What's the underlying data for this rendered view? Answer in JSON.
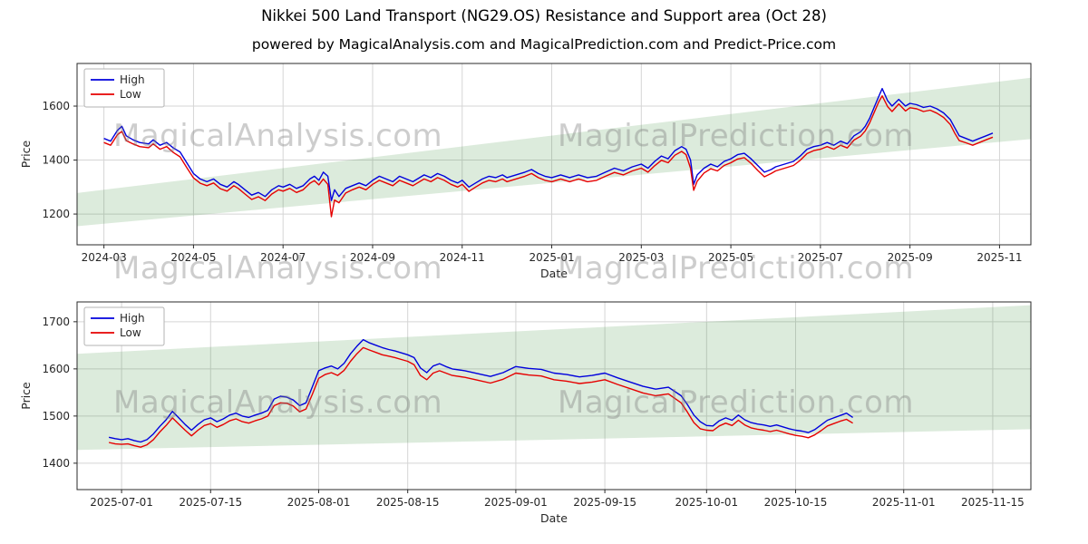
{
  "title": "Nikkei 500 Land Transport (NG29.OS) Resistance and Support area (Oct 28)",
  "subtitle": "powered by MagicalAnalysis.com and MagicalPrediction.com and Predict-Price.com",
  "watermarks": {
    "analysis": "MagicalAnalysis.com",
    "prediction": "MagicalPrediction.com"
  },
  "colors": {
    "grid": "#d5d5d5",
    "spine": "#2a2a2a",
    "text": "#262626",
    "band": "#2e8b2e",
    "legend_border": "#b3b3b3"
  },
  "chart_data": [
    {
      "type": "line",
      "title": "",
      "xlabel": "Date",
      "ylabel": "Price",
      "xlim": [
        -0.6,
        20.7
      ],
      "ylim": [
        1086,
        1758
      ],
      "grid": true,
      "legend_position": "upper left",
      "x_ticks": [
        {
          "v": 0,
          "label": "2024-03"
        },
        {
          "v": 2,
          "label": "2024-05"
        },
        {
          "v": 4,
          "label": "2024-07"
        },
        {
          "v": 6,
          "label": "2024-09"
        },
        {
          "v": 8,
          "label": "2024-11"
        },
        {
          "v": 10,
          "label": "2025-01"
        },
        {
          "v": 12,
          "label": "2025-03"
        },
        {
          "v": 14,
          "label": "2025-05"
        },
        {
          "v": 16,
          "label": "2025-07"
        },
        {
          "v": 18,
          "label": "2025-09"
        },
        {
          "v": 20,
          "label": "2025-11"
        }
      ],
      "y_ticks": [
        1200,
        1400,
        1600
      ],
      "band": {
        "upper": [
          [
            -0.6,
            1278
          ],
          [
            20.7,
            1705
          ]
        ],
        "lower": [
          [
            -0.6,
            1155
          ],
          [
            20.7,
            1478
          ]
        ]
      },
      "series": [
        {
          "name": "High",
          "color": "#0000dd"
        },
        {
          "name": "Low",
          "color": "#e60000"
        }
      ],
      "points": [
        [
          0,
          1480,
          1465
        ],
        [
          0.15,
          1470,
          1455
        ],
        [
          0.3,
          1510,
          1494
        ],
        [
          0.4,
          1525,
          1506
        ],
        [
          0.5,
          1490,
          1472
        ],
        [
          0.65,
          1475,
          1460
        ],
        [
          0.8,
          1465,
          1450
        ],
        [
          1.0,
          1460,
          1446
        ],
        [
          1.1,
          1475,
          1460
        ],
        [
          1.25,
          1455,
          1440
        ],
        [
          1.4,
          1465,
          1450
        ],
        [
          1.55,
          1445,
          1428
        ],
        [
          1.7,
          1430,
          1412
        ],
        [
          1.85,
          1390,
          1372
        ],
        [
          2.0,
          1350,
          1334
        ],
        [
          2.15,
          1330,
          1314
        ],
        [
          2.3,
          1320,
          1305
        ],
        [
          2.45,
          1330,
          1315
        ],
        [
          2.6,
          1310,
          1294
        ],
        [
          2.75,
          1300,
          1285
        ],
        [
          2.9,
          1320,
          1305
        ],
        [
          3.0,
          1310,
          1295
        ],
        [
          3.15,
          1290,
          1274
        ],
        [
          3.3,
          1270,
          1254
        ],
        [
          3.45,
          1280,
          1264
        ],
        [
          3.6,
          1265,
          1250
        ],
        [
          3.75,
          1290,
          1274
        ],
        [
          3.9,
          1305,
          1290
        ],
        [
          4.0,
          1300,
          1285
        ],
        [
          4.15,
          1310,
          1295
        ],
        [
          4.3,
          1295,
          1280
        ],
        [
          4.45,
          1305,
          1290
        ],
        [
          4.6,
          1330,
          1314
        ],
        [
          4.7,
          1340,
          1324
        ],
        [
          4.8,
          1325,
          1308
        ],
        [
          4.9,
          1355,
          1330
        ],
        [
          5.0,
          1340,
          1310
        ],
        [
          5.08,
          1250,
          1190
        ],
        [
          5.15,
          1290,
          1252
        ],
        [
          5.25,
          1265,
          1242
        ],
        [
          5.4,
          1295,
          1278
        ],
        [
          5.55,
          1305,
          1290
        ],
        [
          5.7,
          1315,
          1300
        ],
        [
          5.85,
          1305,
          1290
        ],
        [
          6.0,
          1325,
          1310
        ],
        [
          6.15,
          1340,
          1325
        ],
        [
          6.3,
          1330,
          1315
        ],
        [
          6.45,
          1320,
          1305
        ],
        [
          6.6,
          1340,
          1325
        ],
        [
          6.75,
          1330,
          1315
        ],
        [
          6.9,
          1320,
          1305
        ],
        [
          7.0,
          1330,
          1315
        ],
        [
          7.15,
          1345,
          1330
        ],
        [
          7.3,
          1335,
          1320
        ],
        [
          7.45,
          1350,
          1335
        ],
        [
          7.6,
          1340,
          1325
        ],
        [
          7.75,
          1325,
          1310
        ],
        [
          7.9,
          1315,
          1300
        ],
        [
          8.0,
          1325,
          1310
        ],
        [
          8.15,
          1300,
          1284
        ],
        [
          8.3,
          1315,
          1300
        ],
        [
          8.45,
          1330,
          1315
        ],
        [
          8.6,
          1340,
          1325
        ],
        [
          8.75,
          1335,
          1320
        ],
        [
          8.9,
          1345,
          1330
        ],
        [
          9.0,
          1335,
          1320
        ],
        [
          9.2,
          1345,
          1330
        ],
        [
          9.4,
          1355,
          1340
        ],
        [
          9.55,
          1365,
          1350
        ],
        [
          9.7,
          1350,
          1335
        ],
        [
          9.85,
          1340,
          1325
        ],
        [
          10.0,
          1335,
          1320
        ],
        [
          10.2,
          1345,
          1330
        ],
        [
          10.4,
          1335,
          1320
        ],
        [
          10.6,
          1345,
          1330
        ],
        [
          10.8,
          1335,
          1320
        ],
        [
          11.0,
          1340,
          1325
        ],
        [
          11.2,
          1355,
          1340
        ],
        [
          11.4,
          1370,
          1354
        ],
        [
          11.6,
          1360,
          1345
        ],
        [
          11.8,
          1375,
          1360
        ],
        [
          12.0,
          1385,
          1370
        ],
        [
          12.15,
          1370,
          1355
        ],
        [
          12.3,
          1395,
          1379
        ],
        [
          12.45,
          1415,
          1399
        ],
        [
          12.6,
          1405,
          1390
        ],
        [
          12.75,
          1435,
          1418
        ],
        [
          12.9,
          1450,
          1432
        ],
        [
          13.0,
          1440,
          1420
        ],
        [
          13.1,
          1400,
          1370
        ],
        [
          13.17,
          1310,
          1288
        ],
        [
          13.25,
          1345,
          1322
        ],
        [
          13.4,
          1370,
          1352
        ],
        [
          13.55,
          1385,
          1368
        ],
        [
          13.7,
          1375,
          1360
        ],
        [
          13.85,
          1395,
          1380
        ],
        [
          14.0,
          1405,
          1390
        ],
        [
          14.15,
          1420,
          1404
        ],
        [
          14.3,
          1425,
          1409
        ],
        [
          14.45,
          1405,
          1388
        ],
        [
          14.6,
          1380,
          1362
        ],
        [
          14.75,
          1355,
          1338
        ],
        [
          14.9,
          1365,
          1350
        ],
        [
          15.0,
          1375,
          1360
        ],
        [
          15.2,
          1385,
          1370
        ],
        [
          15.4,
          1395,
          1380
        ],
        [
          15.55,
          1415,
          1399
        ],
        [
          15.7,
          1440,
          1424
        ],
        [
          15.85,
          1450,
          1435
        ],
        [
          16.0,
          1455,
          1440
        ],
        [
          16.15,
          1465,
          1450
        ],
        [
          16.3,
          1455,
          1440
        ],
        [
          16.45,
          1470,
          1455
        ],
        [
          16.6,
          1460,
          1445
        ],
        [
          16.75,
          1490,
          1474
        ],
        [
          16.9,
          1505,
          1489
        ],
        [
          17.0,
          1525,
          1508
        ],
        [
          17.1,
          1555,
          1538
        ],
        [
          17.2,
          1595,
          1576
        ],
        [
          17.3,
          1635,
          1615
        ],
        [
          17.38,
          1665,
          1638
        ],
        [
          17.5,
          1620,
          1598
        ],
        [
          17.6,
          1600,
          1580
        ],
        [
          17.75,
          1625,
          1608
        ],
        [
          17.9,
          1600,
          1582
        ],
        [
          18.0,
          1610,
          1594
        ],
        [
          18.15,
          1605,
          1590
        ],
        [
          18.3,
          1595,
          1580
        ],
        [
          18.45,
          1600,
          1585
        ],
        [
          18.6,
          1590,
          1574
        ],
        [
          18.75,
          1575,
          1558
        ],
        [
          18.9,
          1550,
          1532
        ],
        [
          19.0,
          1520,
          1500
        ],
        [
          19.1,
          1490,
          1472
        ],
        [
          19.25,
          1480,
          1464
        ],
        [
          19.4,
          1470,
          1455
        ],
        [
          19.55,
          1480,
          1465
        ],
        [
          19.7,
          1490,
          1475
        ],
        [
          19.85,
          1500,
          1485
        ]
      ]
    },
    {
      "type": "line",
      "title": "",
      "xlabel": "Date",
      "ylabel": "Price",
      "xlim": [
        -7,
        143
      ],
      "ylim": [
        1344,
        1742
      ],
      "grid": true,
      "legend_position": "upper left",
      "x_ticks": [
        {
          "v": 0,
          "label": "2025-07-01"
        },
        {
          "v": 14,
          "label": "2025-07-15"
        },
        {
          "v": 31,
          "label": "2025-08-01"
        },
        {
          "v": 45,
          "label": "2025-08-15"
        },
        {
          "v": 62,
          "label": "2025-09-01"
        },
        {
          "v": 76,
          "label": "2025-09-15"
        },
        {
          "v": 92,
          "label": "2025-10-01"
        },
        {
          "v": 106,
          "label": "2025-10-15"
        },
        {
          "v": 123,
          "label": "2025-11-01"
        },
        {
          "v": 137,
          "label": "2025-11-15"
        }
      ],
      "y_ticks": [
        1400,
        1500,
        1600,
        1700
      ],
      "band": {
        "upper": [
          [
            -7,
            1632
          ],
          [
            143,
            1735
          ]
        ],
        "lower": [
          [
            -7,
            1428
          ],
          [
            143,
            1472
          ]
        ]
      },
      "series": [
        {
          "name": "High",
          "color": "#0000dd"
        },
        {
          "name": "Low",
          "color": "#e60000"
        }
      ],
      "points": [
        [
          -2,
          1455,
          1444
        ],
        [
          -1,
          1452,
          1441
        ],
        [
          0,
          1450,
          1440
        ],
        [
          1,
          1452,
          1441
        ],
        [
          2,
          1448,
          1437
        ],
        [
          3,
          1445,
          1434
        ],
        [
          4,
          1450,
          1439
        ],
        [
          5,
          1462,
          1450
        ],
        [
          6,
          1478,
          1466
        ],
        [
          7,
          1492,
          1480
        ],
        [
          8,
          1510,
          1496
        ],
        [
          9,
          1496,
          1483
        ],
        [
          10,
          1482,
          1470
        ],
        [
          11,
          1470,
          1458
        ],
        [
          12,
          1482,
          1470
        ],
        [
          13,
          1492,
          1480
        ],
        [
          14,
          1496,
          1484
        ],
        [
          15,
          1488,
          1476
        ],
        [
          16,
          1494,
          1482
        ],
        [
          17,
          1502,
          1490
        ],
        [
          18,
          1506,
          1494
        ],
        [
          19,
          1500,
          1488
        ],
        [
          20,
          1497,
          1485
        ],
        [
          21,
          1502,
          1490
        ],
        [
          22,
          1506,
          1494
        ],
        [
          23,
          1512,
          1500
        ],
        [
          24,
          1536,
          1522
        ],
        [
          25,
          1542,
          1528
        ],
        [
          26,
          1540,
          1527
        ],
        [
          27,
          1534,
          1521
        ],
        [
          28,
          1522,
          1509
        ],
        [
          29,
          1528,
          1515
        ],
        [
          30,
          1562,
          1546
        ],
        [
          31,
          1596,
          1580
        ],
        [
          32,
          1602,
          1588
        ],
        [
          33,
          1606,
          1592
        ],
        [
          34,
          1600,
          1586
        ],
        [
          35,
          1612,
          1597
        ],
        [
          36,
          1632,
          1616
        ],
        [
          37,
          1648,
          1632
        ],
        [
          38,
          1662,
          1645
        ],
        [
          39,
          1655,
          1640
        ],
        [
          40,
          1650,
          1635
        ],
        [
          41,
          1645,
          1630
        ],
        [
          42,
          1641,
          1627
        ],
        [
          43,
          1638,
          1624
        ],
        [
          44,
          1634,
          1620
        ],
        [
          45,
          1630,
          1616
        ],
        [
          46,
          1624,
          1609
        ],
        [
          47,
          1602,
          1586
        ],
        [
          48,
          1592,
          1577
        ],
        [
          49,
          1606,
          1591
        ],
        [
          50,
          1611,
          1596
        ],
        [
          51,
          1605,
          1591
        ],
        [
          52,
          1600,
          1586
        ],
        [
          54,
          1596,
          1582
        ],
        [
          56,
          1590,
          1576
        ],
        [
          58,
          1584,
          1570
        ],
        [
          60,
          1592,
          1578
        ],
        [
          62,
          1605,
          1591
        ],
        [
          64,
          1601,
          1587
        ],
        [
          66,
          1599,
          1585
        ],
        [
          68,
          1591,
          1577
        ],
        [
          70,
          1588,
          1574
        ],
        [
          72,
          1583,
          1569
        ],
        [
          74,
          1586,
          1572
        ],
        [
          76,
          1591,
          1577
        ],
        [
          78,
          1581,
          1567
        ],
        [
          80,
          1572,
          1558
        ],
        [
          82,
          1563,
          1549
        ],
        [
          84,
          1557,
          1543
        ],
        [
          86,
          1561,
          1547
        ],
        [
          88,
          1543,
          1528
        ],
        [
          89,
          1524,
          1508
        ],
        [
          90,
          1502,
          1486
        ],
        [
          91,
          1488,
          1473
        ],
        [
          92,
          1480,
          1470
        ],
        [
          93,
          1479,
          1469
        ],
        [
          94,
          1490,
          1479
        ],
        [
          95,
          1496,
          1485
        ],
        [
          96,
          1491,
          1480
        ],
        [
          97,
          1502,
          1491
        ],
        [
          98,
          1492,
          1481
        ],
        [
          99,
          1486,
          1475
        ],
        [
          100,
          1483,
          1472
        ],
        [
          101,
          1481,
          1470
        ],
        [
          102,
          1478,
          1467
        ],
        [
          103,
          1481,
          1470
        ],
        [
          104,
          1477,
          1466
        ],
        [
          105,
          1473,
          1462
        ],
        [
          106,
          1470,
          1459
        ],
        [
          107,
          1468,
          1457
        ],
        [
          108,
          1465,
          1454
        ],
        [
          109,
          1471,
          1460
        ],
        [
          110,
          1481,
          1469
        ],
        [
          111,
          1491,
          1479
        ],
        [
          112,
          1496,
          1484
        ],
        [
          113,
          1501,
          1489
        ],
        [
          114,
          1506,
          1493
        ],
        [
          115,
          1497,
          1485
        ]
      ]
    }
  ]
}
